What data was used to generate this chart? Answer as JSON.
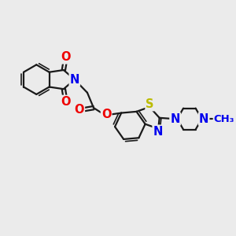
{
  "background_color": "#ebebeb",
  "bond_color": "#1a1a1a",
  "bond_width": 1.6,
  "atom_colors": {
    "N": "#0000ee",
    "O": "#ee0000",
    "S": "#bbbb00",
    "C": "#1a1a1a"
  },
  "font_size_atom": 10.5
}
